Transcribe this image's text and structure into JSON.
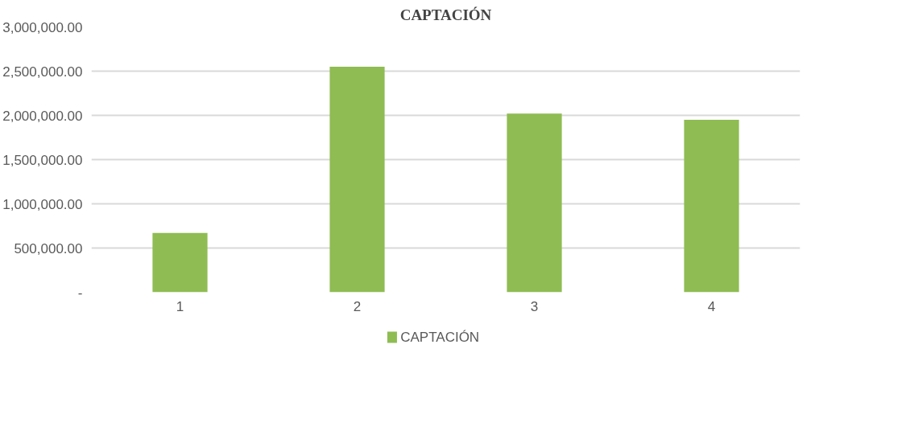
{
  "chart_data": {
    "type": "bar",
    "title": "CAPTACIÓN",
    "categories": [
      "1",
      "2",
      "3",
      "4"
    ],
    "series": [
      {
        "name": "CAPTACIÓN",
        "color": "#8fbc53",
        "values": [
          670000,
          2550000,
          2020000,
          1950000
        ]
      }
    ],
    "ylim": [
      0,
      3000000
    ],
    "yticks": [
      {
        "value": 0,
        "label": "-"
      },
      {
        "value": 500000,
        "label": "500,000.00"
      },
      {
        "value": 1000000,
        "label": "1,000,000.00"
      },
      {
        "value": 1500000,
        "label": "1,500,000.00"
      },
      {
        "value": 2000000,
        "label": "2,000,000.00"
      },
      {
        "value": 2500000,
        "label": "2,500,000.00"
      },
      {
        "value": 3000000,
        "label": "3,000,000.00"
      }
    ],
    "grid": "y",
    "legend": "bottom"
  }
}
